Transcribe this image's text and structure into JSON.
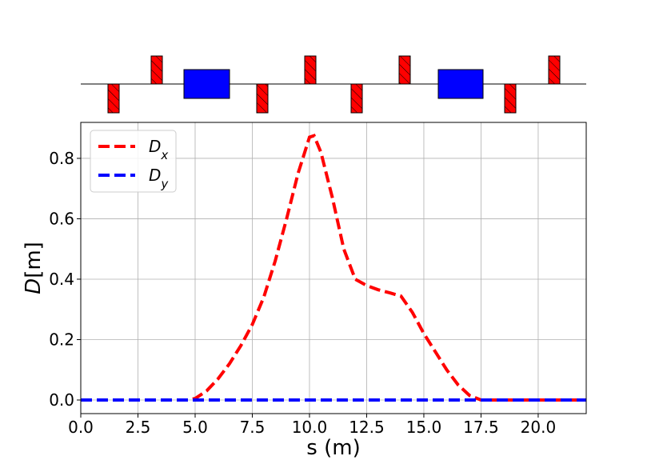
{
  "chart_data": {
    "type": "line",
    "xlabel": "s (m)",
    "ylabel": "D[m]",
    "x": [
      0,
      4.7,
      5,
      5.5,
      6,
      6.5,
      7,
      7.5,
      8,
      8.5,
      9,
      9.5,
      10,
      10.2,
      10.5,
      11,
      11.5,
      12,
      12.5,
      13,
      13.5,
      14,
      14.5,
      15,
      15.5,
      16,
      16.5,
      17,
      17.5,
      22.1
    ],
    "series": [
      {
        "name": "Dx",
        "color": "#ff0000",
        "values": [
          0,
          0,
          0.005,
          0.03,
          0.07,
          0.12,
          0.18,
          0.25,
          0.34,
          0.46,
          0.6,
          0.75,
          0.87,
          0.875,
          0.82,
          0.67,
          0.5,
          0.4,
          0.379,
          0.365,
          0.355,
          0.344,
          0.29,
          0.22,
          0.16,
          0.1,
          0.05,
          0.015,
          0,
          0
        ]
      },
      {
        "name": "Dy",
        "color": "#0000ff",
        "values": [
          0,
          0,
          0,
          0,
          0,
          0,
          0,
          0,
          0,
          0,
          0,
          0,
          0,
          0,
          0,
          0,
          0,
          0,
          0,
          0,
          0,
          0,
          0,
          0,
          0,
          0,
          0,
          0,
          0,
          0
        ]
      }
    ],
    "xlim": [
      0,
      22.1
    ],
    "ylim": [
      -0.045,
      0.919
    ],
    "xticks": [
      {
        "value": 0,
        "label": "0.0"
      },
      2.5,
      {
        "value": 5,
        "label": "5.0"
      },
      7.5,
      {
        "value": 10,
        "label": "10.0"
      },
      12.5,
      {
        "value": 15,
        "label": "15.0"
      },
      17.5,
      {
        "value": 20,
        "label": "20.0"
      }
    ],
    "yticks": [
      {
        "value": 0,
        "label": "0.0"
      },
      0.2,
      0.4,
      0.6,
      0.8
    ],
    "grid": true,
    "legend": "upper-left"
  }
}
